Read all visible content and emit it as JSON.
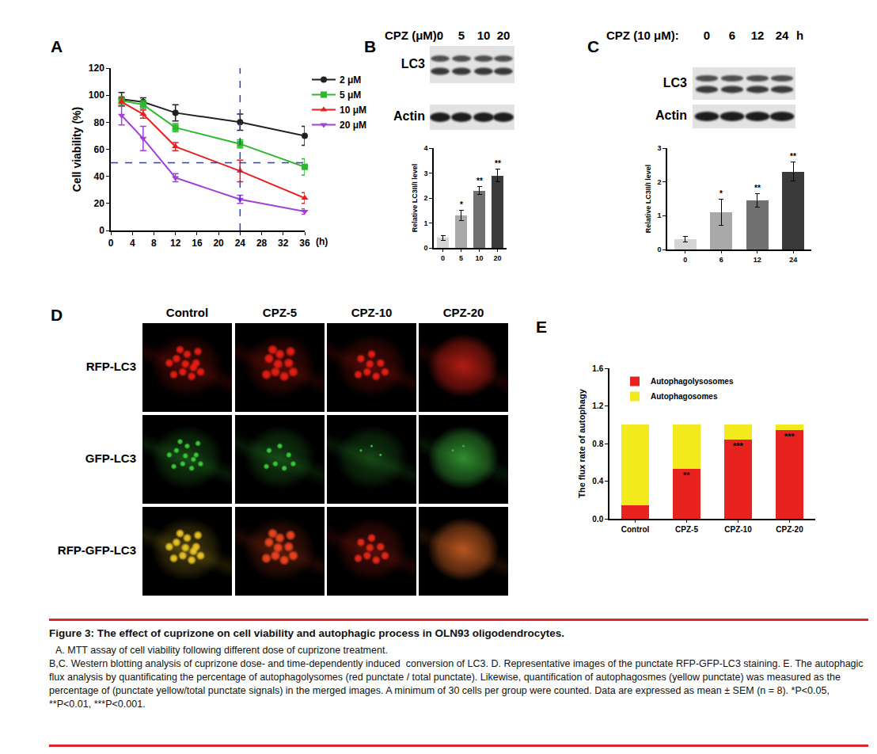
{
  "chart_data": [
    {
      "title": "A",
      "type": "line",
      "x": [
        2,
        6,
        12,
        24,
        36
      ],
      "xlim": [
        0,
        36
      ],
      "xticks": [
        0,
        4,
        8,
        12,
        16,
        20,
        24,
        28,
        32,
        36
      ],
      "xlabel": "(h)",
      "ylabel": "Cell viability (%)",
      "ylim": [
        0,
        120
      ],
      "yticks": [
        0,
        20,
        40,
        60,
        80,
        100,
        120
      ],
      "grid": false,
      "legend": "right",
      "annotations": [
        {
          "type": "vline",
          "x": 24,
          "color": "#2a3fbf"
        },
        {
          "type": "hline",
          "y": 50,
          "color": "#2a3fbf"
        }
      ],
      "series": [
        {
          "name": "2 μM",
          "color": "#222222",
          "marker": "circle",
          "values": [
            97,
            95,
            87,
            80,
            70
          ],
          "errors": [
            5,
            3,
            6,
            6,
            7
          ]
        },
        {
          "name": "5 μM",
          "color": "#2db82d",
          "marker": "square",
          "values": [
            96,
            93,
            76,
            64,
            47
          ],
          "errors": [
            3,
            3,
            3,
            3,
            6
          ]
        },
        {
          "name": "10 μM",
          "color": "#e8201f",
          "marker": "triangle-up",
          "values": [
            95,
            86,
            62,
            44,
            24
          ],
          "errors": [
            3,
            3,
            3,
            8,
            4
          ]
        },
        {
          "name": "20 μM",
          "color": "#a040d8",
          "marker": "triangle-down",
          "values": [
            85,
            68,
            39,
            23,
            14
          ],
          "errors": [
            7,
            9,
            3,
            3,
            2
          ]
        }
      ]
    },
    {
      "title": "B",
      "type": "bar",
      "categories": [
        "0",
        "5",
        "10",
        "20"
      ],
      "values": [
        0.4,
        1.3,
        2.3,
        2.9
      ],
      "errors": [
        0.1,
        0.2,
        0.15,
        0.25
      ],
      "colors": [
        "#d4d4d4",
        "#a9a9a9",
        "#707070",
        "#3a3a3a"
      ],
      "ylabel": "Relative LC3II/I level",
      "ylim": [
        0,
        4
      ],
      "yticks": [
        0,
        1,
        2,
        3,
        4
      ],
      "grid": false,
      "annotations": [
        {
          "category": "5",
          "text": "*"
        },
        {
          "category": "10",
          "text": "**"
        },
        {
          "category": "20",
          "text": "**"
        }
      ]
    },
    {
      "title": "C",
      "type": "bar",
      "categories": [
        "0",
        "6",
        "12",
        "24"
      ],
      "values": [
        0.3,
        1.1,
        1.45,
        2.3
      ],
      "errors": [
        0.08,
        0.38,
        0.2,
        0.28
      ],
      "colors": [
        "#d4d4d4",
        "#a9a9a9",
        "#707070",
        "#3a3a3a"
      ],
      "ylabel": "Relative LC3II/I level",
      "ylim": [
        0,
        3
      ],
      "yticks": [
        0,
        1,
        2,
        3
      ],
      "grid": false,
      "annotations": [
        {
          "category": "6",
          "text": "*"
        },
        {
          "category": "12",
          "text": "**"
        },
        {
          "category": "24",
          "text": "**"
        }
      ]
    },
    {
      "title": "E",
      "type": "bar",
      "stacked": true,
      "categories": [
        "Control",
        "CPZ-5",
        "CPZ-10",
        "CPZ-20"
      ],
      "series": [
        {
          "name": "Autophagolysosomes",
          "color": "#e8231f",
          "values": [
            0.14,
            0.53,
            0.84,
            0.94
          ]
        },
        {
          "name": "Autophagosomes",
          "color": "#f2ea1d",
          "values": [
            0.86,
            0.47,
            0.16,
            0.06
          ]
        }
      ],
      "ylabel": "The flux rate of autophagy",
      "ylim": [
        0,
        1.6
      ],
      "yticks": [
        {
          "value": 0,
          "label": "0.0"
        },
        0.4,
        0.8,
        1.2,
        1.6
      ],
      "grid": false,
      "legend": "top",
      "annotations": [
        {
          "category": "CPZ-5",
          "series": "Autophagolysosomes",
          "text": "**"
        },
        {
          "category": "CPZ-10",
          "series": "Autophagolysosomes",
          "text": "***"
        },
        {
          "category": "CPZ-20",
          "series": "Autophagolysosomes",
          "text": "***"
        }
      ]
    }
  ],
  "western_blots": [
    {
      "header": "CPZ (μM):",
      "lanes": [
        "0",
        "5",
        "10",
        "20"
      ],
      "rows": [
        "LC3",
        "Actin"
      ]
    },
    {
      "header": "CPZ (10 μM):",
      "lanes": [
        "0",
        "6",
        "12",
        "24"
      ],
      "unit": "h",
      "rows": [
        "LC3",
        "Actin"
      ]
    }
  ],
  "images": {
    "panel": "D",
    "columns": [
      "Control",
      "CPZ-5",
      "CPZ-10",
      "CPZ-20"
    ],
    "rows": [
      "RFP-LC3",
      "GFP-LC3",
      "RFP-GFP-LC3"
    ]
  },
  "caption": {
    "title": "Figure 3: The effect of cuprizone on cell viability and autophagic process in OLN93 oligodendrocytes.",
    "lines": [
      "A. MTT assay of cell viability following different dose of cuprizone treatment.",
      "B,C. Western blotting analysis of cuprizone dose- and time-dependently induced  conversion of LC3. D. Representative images of the punctate RFP-GFP-LC3 staining. E. The autophagic flux analysis by quantificating the percentage of autophagolysomes (red punctate / total punctate). Likewise, quantification of autophagosmes (yellow punctate) was measured as the percentage of (punctate yellow/total punctate signals) in the merged images. A minimum of 30 cells per group were counted. Data are expressed as mean ± SEM (n = 8). *P<0.05, **P<0.01, ***P<0.001."
    ]
  }
}
